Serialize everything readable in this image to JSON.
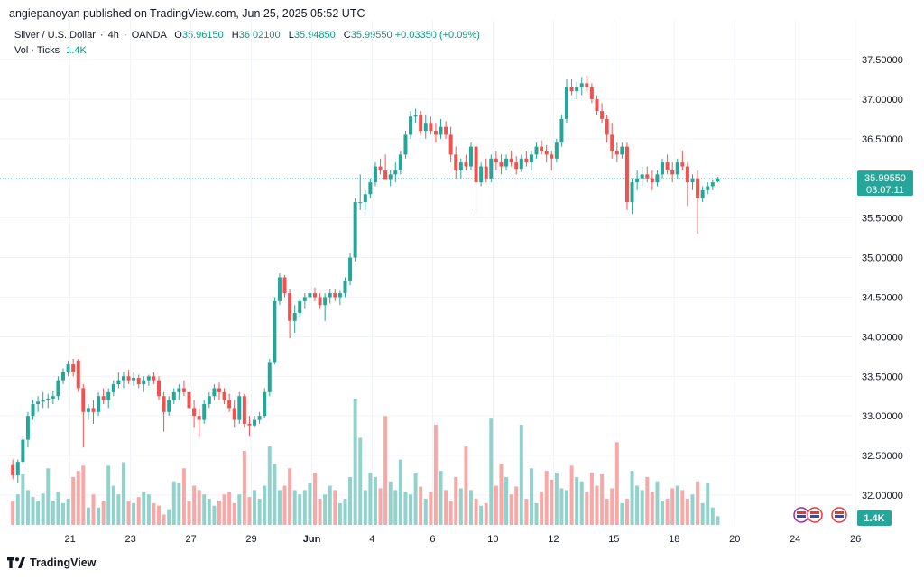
{
  "header": {
    "publisher": "angiepanoyan",
    "published_text": "published on TradingView.com, Jun 25, 2025 05:52 UTC"
  },
  "legend": {
    "symbol": "Silver / U.S. Dollar",
    "interval": "4h",
    "source": "OANDA",
    "o_label": "O",
    "o": "35.96150",
    "h_label": "H",
    "h": "36.02100",
    "l_label": "L",
    "l": "35.94850",
    "c_label": "C",
    "c": "35.99550",
    "change": "+0.03350 (+0.09%)",
    "vol_label": "Vol · Ticks",
    "vol_value": "1.4K"
  },
  "price_label": {
    "price": "35.99550",
    "countdown": "03:07:11"
  },
  "volume_label": "1.4K",
  "footer": {
    "brand": "TradingView"
  },
  "colors": {
    "up": "#26a69a",
    "down": "#ef5350",
    "up_vol": "#92d2cc",
    "down_vol": "#f7a9a7",
    "grid": "#f0f3fa",
    "text": "#131722"
  },
  "chart_data": {
    "type": "candlestick",
    "title": "Silver / U.S. Dollar · 4h · OANDA",
    "ylim": [
      31.8,
      37.7
    ],
    "y_ticks": [
      "37.50000",
      "37.00000",
      "36.50000",
      "36.00000",
      "35.50000",
      "35.00000",
      "34.50000",
      "34.00000",
      "33.50000",
      "33.00000",
      "32.50000",
      "32.00000"
    ],
    "y_tick_values": [
      37.5,
      37.0,
      36.5,
      36.0,
      35.5,
      35.0,
      34.5,
      34.0,
      33.5,
      33.0,
      32.5,
      32.0
    ],
    "x_ticks": [
      "21",
      "23",
      "27",
      "29",
      "Jun",
      "4",
      "6",
      "10",
      "12",
      "15",
      "18",
      "20",
      "24",
      "26"
    ],
    "x_tick_index": [
      6,
      18,
      30,
      42,
      54,
      66,
      78,
      90,
      102,
      114,
      126,
      138,
      150,
      162
    ],
    "last_price": 35.9955,
    "ohlc": [
      [
        32.38,
        32.45,
        32.2,
        32.25
      ],
      [
        32.25,
        32.45,
        32.15,
        32.42
      ],
      [
        32.42,
        32.75,
        32.38,
        32.7
      ],
      [
        32.7,
        33.05,
        32.6,
        33.0
      ],
      [
        33.0,
        33.2,
        32.95,
        33.15
      ],
      [
        33.15,
        33.25,
        33.05,
        33.18
      ],
      [
        33.18,
        33.3,
        33.1,
        33.2
      ],
      [
        33.2,
        33.28,
        33.1,
        33.22
      ],
      [
        33.22,
        33.32,
        33.15,
        33.25
      ],
      [
        33.25,
        33.5,
        33.2,
        33.45
      ],
      [
        33.45,
        33.6,
        33.4,
        33.55
      ],
      [
        33.55,
        33.7,
        33.5,
        33.65
      ],
      [
        33.65,
        33.72,
        33.5,
        33.55
      ],
      [
        33.7,
        33.72,
        33.3,
        33.35
      ],
      [
        33.35,
        33.4,
        32.6,
        33.05
      ],
      [
        33.05,
        33.15,
        32.95,
        33.1
      ],
      [
        33.1,
        33.2,
        32.9,
        33.05
      ],
      [
        33.05,
        33.3,
        33.0,
        33.25
      ],
      [
        33.25,
        33.35,
        33.15,
        33.2
      ],
      [
        33.2,
        33.35,
        33.1,
        33.3
      ],
      [
        33.3,
        33.45,
        33.25,
        33.4
      ],
      [
        33.4,
        33.55,
        33.35,
        33.45
      ],
      [
        33.45,
        33.55,
        33.35,
        33.5
      ],
      [
        33.5,
        33.58,
        33.4,
        33.45
      ],
      [
        33.45,
        33.55,
        33.38,
        33.48
      ],
      [
        33.48,
        33.52,
        33.35,
        33.4
      ],
      [
        33.4,
        33.5,
        33.3,
        33.45
      ],
      [
        33.45,
        33.52,
        33.38,
        33.5
      ],
      [
        33.5,
        33.55,
        33.4,
        33.45
      ],
      [
        33.45,
        33.5,
        33.2,
        33.25
      ],
      [
        33.25,
        33.3,
        32.8,
        33.05
      ],
      [
        33.05,
        33.25,
        33.0,
        33.2
      ],
      [
        33.2,
        33.35,
        33.15,
        33.3
      ],
      [
        33.3,
        33.4,
        33.2,
        33.35
      ],
      [
        33.35,
        33.45,
        33.25,
        33.3
      ],
      [
        33.3,
        33.38,
        33.0,
        33.1
      ],
      [
        33.1,
        33.2,
        32.85,
        33.0
      ],
      [
        33.0,
        33.1,
        32.75,
        32.95
      ],
      [
        32.95,
        33.2,
        32.9,
        33.15
      ],
      [
        33.15,
        33.3,
        33.1,
        33.25
      ],
      [
        33.25,
        33.4,
        33.2,
        33.35
      ],
      [
        33.35,
        33.42,
        33.2,
        33.3
      ],
      [
        33.3,
        33.35,
        33.15,
        33.2
      ],
      [
        33.2,
        33.28,
        33.05,
        33.1
      ],
      [
        33.1,
        33.2,
        32.85,
        32.95
      ],
      [
        32.95,
        33.3,
        32.9,
        33.25
      ],
      [
        33.25,
        33.28,
        32.85,
        32.9
      ],
      [
        32.9,
        33.0,
        32.75,
        32.88
      ],
      [
        32.88,
        33.0,
        32.85,
        32.95
      ],
      [
        32.95,
        33.05,
        32.9,
        33.0
      ],
      [
        33.0,
        33.35,
        32.98,
        33.3
      ],
      [
        33.3,
        33.72,
        33.25,
        33.68
      ],
      [
        33.68,
        34.5,
        33.65,
        34.45
      ],
      [
        34.45,
        34.8,
        34.4,
        34.75
      ],
      [
        34.75,
        34.78,
        34.5,
        34.55
      ],
      [
        34.55,
        34.6,
        33.98,
        34.2
      ],
      [
        34.2,
        34.4,
        34.05,
        34.3
      ],
      [
        34.3,
        34.48,
        34.25,
        34.45
      ],
      [
        34.45,
        34.55,
        34.35,
        34.5
      ],
      [
        34.5,
        34.58,
        34.4,
        34.55
      ],
      [
        34.55,
        34.62,
        34.45,
        34.5
      ],
      [
        34.5,
        34.55,
        34.35,
        34.4
      ],
      [
        34.4,
        34.55,
        34.2,
        34.5
      ],
      [
        34.5,
        34.6,
        34.42,
        34.55
      ],
      [
        34.55,
        34.6,
        34.45,
        34.5
      ],
      [
        34.5,
        34.58,
        34.4,
        34.55
      ],
      [
        34.55,
        34.75,
        34.5,
        34.7
      ],
      [
        34.7,
        35.05,
        34.65,
        35.0
      ],
      [
        35.0,
        35.75,
        34.95,
        35.7
      ],
      [
        35.7,
        36.05,
        35.6,
        35.7
      ],
      [
        35.7,
        35.85,
        35.6,
        35.8
      ],
      [
        35.8,
        36.0,
        35.75,
        35.95
      ],
      [
        35.95,
        36.2,
        35.9,
        36.15
      ],
      [
        36.15,
        36.25,
        36.05,
        36.1
      ],
      [
        36.1,
        36.3,
        36.0,
        35.98
      ],
      [
        35.98,
        36.1,
        35.9,
        36.05
      ],
      [
        36.05,
        36.2,
        35.95,
        36.1
      ],
      [
        36.1,
        36.35,
        36.05,
        36.3
      ],
      [
        36.3,
        36.6,
        36.25,
        36.55
      ],
      [
        36.55,
        36.85,
        36.5,
        36.78
      ],
      [
        36.78,
        36.88,
        36.7,
        36.8
      ],
      [
        36.8,
        36.85,
        36.55,
        36.6
      ],
      [
        36.6,
        36.8,
        36.5,
        36.7
      ],
      [
        36.7,
        36.78,
        36.55,
        36.6
      ],
      [
        36.6,
        36.7,
        36.45,
        36.55
      ],
      [
        36.55,
        36.75,
        36.5,
        36.65
      ],
      [
        36.65,
        36.72,
        36.5,
        36.55
      ],
      [
        36.55,
        36.65,
        36.2,
        36.3
      ],
      [
        36.3,
        36.4,
        36.0,
        36.1
      ],
      [
        36.1,
        36.25,
        36.0,
        36.2
      ],
      [
        36.2,
        36.3,
        36.1,
        36.15
      ],
      [
        36.15,
        36.45,
        36.1,
        36.4
      ],
      [
        36.4,
        36.45,
        35.55,
        35.95
      ],
      [
        35.95,
        36.2,
        35.9,
        36.15
      ],
      [
        36.15,
        36.25,
        35.95,
        36.0
      ],
      [
        36.0,
        36.3,
        35.95,
        36.25
      ],
      [
        36.25,
        36.35,
        36.1,
        36.2
      ],
      [
        36.2,
        36.3,
        36.05,
        36.15
      ],
      [
        36.15,
        36.3,
        36.1,
        36.25
      ],
      [
        36.25,
        36.35,
        36.15,
        36.2
      ],
      [
        36.2,
        36.28,
        36.05,
        36.12
      ],
      [
        36.12,
        36.3,
        36.08,
        36.25
      ],
      [
        36.25,
        36.35,
        36.15,
        36.2
      ],
      [
        36.2,
        36.35,
        36.1,
        36.3
      ],
      [
        36.3,
        36.45,
        36.25,
        36.4
      ],
      [
        36.4,
        36.48,
        36.3,
        36.35
      ],
      [
        36.35,
        36.42,
        36.2,
        36.3
      ],
      [
        36.3,
        36.35,
        36.1,
        36.25
      ],
      [
        36.25,
        36.5,
        36.2,
        36.45
      ],
      [
        36.45,
        36.8,
        36.4,
        36.75
      ],
      [
        36.75,
        37.25,
        36.7,
        37.15
      ],
      [
        37.15,
        37.25,
        37.05,
        37.1
      ],
      [
        37.1,
        37.22,
        37.0,
        37.15
      ],
      [
        37.15,
        37.28,
        37.05,
        37.2
      ],
      [
        37.2,
        37.3,
        37.1,
        37.15
      ],
      [
        37.15,
        37.2,
        36.95,
        37.0
      ],
      [
        37.0,
        37.05,
        36.8,
        36.85
      ],
      [
        36.85,
        36.95,
        36.7,
        36.75
      ],
      [
        36.75,
        36.8,
        36.45,
        36.55
      ],
      [
        36.55,
        36.7,
        36.25,
        36.35
      ],
      [
        36.35,
        36.45,
        36.2,
        36.3
      ],
      [
        36.3,
        36.45,
        36.25,
        36.4
      ],
      [
        36.4,
        36.45,
        35.6,
        35.7
      ],
      [
        35.7,
        36.0,
        35.55,
        35.95
      ],
      [
        35.95,
        36.1,
        35.85,
        36.0
      ],
      [
        36.0,
        36.15,
        35.9,
        36.05
      ],
      [
        36.05,
        36.15,
        35.95,
        36.0
      ],
      [
        36.0,
        36.1,
        35.85,
        35.95
      ],
      [
        35.95,
        36.1,
        35.9,
        36.05
      ],
      [
        36.05,
        36.25,
        36.0,
        36.2
      ],
      [
        36.2,
        36.3,
        36.05,
        36.1
      ],
      [
        36.1,
        36.2,
        35.95,
        36.05
      ],
      [
        36.05,
        36.25,
        36.0,
        36.2
      ],
      [
        36.2,
        36.35,
        36.1,
        36.15
      ],
      [
        36.15,
        36.2,
        35.65,
        35.95
      ],
      [
        35.95,
        36.05,
        35.85,
        36.0
      ],
      [
        36.0,
        36.1,
        35.3,
        35.75
      ],
      [
        35.75,
        35.9,
        35.7,
        35.85
      ],
      [
        35.85,
        35.95,
        35.8,
        35.9
      ],
      [
        35.9,
        35.98,
        35.85,
        35.95
      ],
      [
        35.96,
        36.02,
        35.95,
        36.0
      ]
    ],
    "volume": [
      28,
      35,
      58,
      40,
      32,
      28,
      36,
      65,
      28,
      38,
      25,
      30,
      55,
      62,
      68,
      20,
      35,
      20,
      28,
      68,
      45,
      35,
      72,
      28,
      25,
      32,
      38,
      35,
      25,
      22,
      12,
      18,
      50,
      48,
      65,
      28,
      45,
      40,
      35,
      30,
      22,
      28,
      35,
      38,
      25,
      35,
      85,
      32,
      40,
      30,
      45,
      90,
      70,
      40,
      45,
      65,
      40,
      35,
      40,
      48,
      60,
      30,
      35,
      45,
      40,
      25,
      30,
      55,
      145,
      100,
      40,
      60,
      55,
      42,
      125,
      50,
      40,
      75,
      38,
      35,
      60,
      44,
      30,
      38,
      115,
      62,
      40,
      28,
      55,
      42,
      90,
      40,
      30,
      22,
      25,
      122,
      45,
      70,
      55,
      35,
      44,
      115,
      30,
      65,
      25,
      38,
      62,
      52,
      60,
      42,
      40,
      68,
      55,
      50,
      38,
      60,
      45,
      58,
      30,
      42,
      95,
      25,
      30,
      62,
      45,
      40,
      55,
      38,
      50,
      28,
      30,
      42,
      45,
      40,
      30,
      35,
      50,
      25,
      48,
      20,
      10
    ],
    "series": [
      {
        "name": "Vol · Ticks",
        "type": "volume"
      }
    ]
  }
}
